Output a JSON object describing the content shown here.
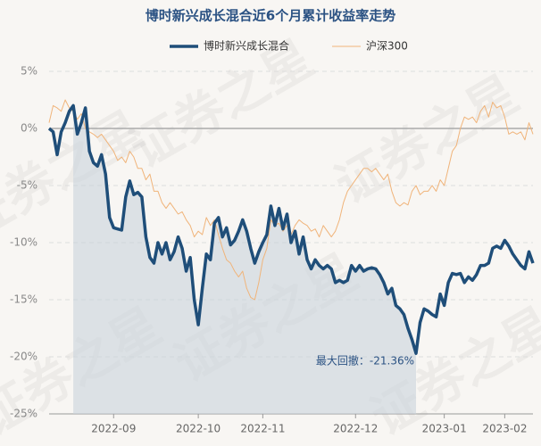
{
  "chart_data": {
    "type": "line",
    "title": "博时新兴成长混合近6个月累计收益率走势",
    "watermark": "证券之星",
    "annotation": "最大回撤：-21.36%",
    "categories": [
      null,
      null,
      null,
      null,
      null,
      null,
      null,
      null,
      null,
      null,
      null,
      null,
      null,
      null,
      null,
      null,
      "2022-09",
      null,
      null,
      null,
      null,
      null,
      null,
      null,
      null,
      null,
      null,
      null,
      null,
      null,
      null,
      null,
      null,
      null,
      null,
      null,
      null,
      "2022-10",
      null,
      null,
      null,
      null,
      null,
      null,
      null,
      null,
      null,
      null,
      null,
      null,
      null,
      null,
      null,
      "2022-11",
      null,
      null,
      null,
      null,
      null,
      null,
      null,
      null,
      null,
      null,
      null,
      null,
      null,
      null,
      null,
      null,
      null,
      null,
      null,
      null,
      null,
      null,
      "2022-12",
      null,
      null,
      null,
      null,
      null,
      null,
      null,
      null,
      null,
      null,
      null,
      null,
      null,
      null,
      null,
      null,
      null,
      null,
      null,
      null,
      null,
      "2023-01",
      null,
      null,
      null,
      null,
      null,
      null,
      null,
      null,
      null,
      null,
      null,
      null,
      null,
      null,
      "2023-02",
      null,
      null,
      null,
      null,
      null,
      null,
      null
    ],
    "series": [
      {
        "name": "博时新兴成长混合",
        "color": "#1f4e79",
        "values": [
          0,
          -0.3,
          -2.3,
          -0.3,
          0.5,
          1.5,
          2.0,
          -0.5,
          0.5,
          1.8,
          -2.0,
          -3.0,
          -3.3,
          -2.3,
          -4.0,
          -7.8,
          -8.7,
          -8.8,
          -8.9,
          -6.0,
          -4.6,
          -5.8,
          -5.6,
          -6.0,
          -9.5,
          -11.3,
          -11.8,
          -10.0,
          -11.0,
          -10.0,
          -11.5,
          -10.8,
          -9.5,
          -10.5,
          -12.5,
          -11.3,
          -15.0,
          -17.2,
          -14.0,
          -11.0,
          -11.5,
          -8.3,
          -7.8,
          -9.5,
          -8.7,
          -10.2,
          -9.8,
          -9.0,
          -8.0,
          -9.0,
          -10.5,
          -11.8,
          -10.8,
          -10.0,
          -9.3,
          -6.8,
          -8.5,
          -7.0,
          -8.8,
          -7.5,
          -10.0,
          -9.0,
          -11.0,
          -9.5,
          -11.5,
          -12.3,
          -11.5,
          -12.0,
          -12.3,
          -12.0,
          -12.3,
          -13.5,
          -13.3,
          -13.5,
          -13.3,
          -12.0,
          -12.5,
          -12.0,
          -12.5,
          -12.3,
          -12.2,
          -12.3,
          -12.8,
          -13.5,
          -14.5,
          -14.0,
          -15.5,
          -15.8,
          -16.3,
          -17.5,
          -18.5,
          -19.7,
          -17.0,
          -15.8,
          -16.0,
          -16.3,
          -16.5,
          -14.5,
          -15.5,
          -13.5,
          -12.7,
          -12.8,
          -12.7,
          -13.5,
          -13.0,
          -13.3,
          -12.8,
          -12.0,
          -12.0,
          -11.8,
          -10.5,
          -10.3,
          -10.5,
          -9.8,
          -10.3,
          -11.0,
          -11.5,
          -12.0,
          -12.3,
          -10.8,
          -11.8
        ]
      },
      {
        "name": "沪深300",
        "color": "#f0b47a",
        "values": [
          0.5,
          2.0,
          1.8,
          1.5,
          2.5,
          1.8,
          1.5,
          0.8,
          1.3,
          0,
          -0.3,
          -0.5,
          -0.8,
          -0.5,
          -1.0,
          -1.5,
          -2.0,
          -2.8,
          -2.5,
          -3.0,
          -2.0,
          -2.5,
          -3.5,
          -3.5,
          -4.5,
          -4.0,
          -5.5,
          -5.5,
          -6.5,
          -7.0,
          -6.5,
          -7.0,
          -7.5,
          -7.3,
          -8.0,
          -8.5,
          -9.5,
          -9.0,
          -9.3,
          -7.8,
          -8.5,
          -8.0,
          -9.3,
          -10.5,
          -11.5,
          -11.8,
          -12.5,
          -13.0,
          -12.5,
          -14.0,
          -14.8,
          -15.0,
          -13.5,
          -11.5,
          -10.5,
          -8.0,
          -8.5,
          -8.3,
          -9.0,
          -8.5,
          -9.3,
          -8.5,
          -8.0,
          -8.3,
          -8.5,
          -9.0,
          -8.8,
          -9.5,
          -8.5,
          -9.0,
          -9.5,
          -9.0,
          -8.0,
          -6.5,
          -5.5,
          -5.0,
          -4.5,
          -4.0,
          -3.5,
          -3.5,
          -3.8,
          -3.5,
          -4.0,
          -4.5,
          -4.0,
          -5.5,
          -6.5,
          -6.8,
          -6.5,
          -6.7,
          -5.5,
          -5.0,
          -5.8,
          -5.5,
          -5.5,
          -5.0,
          -5.5,
          -4.5,
          -5.0,
          -3.5,
          -2.0,
          -1.5,
          0,
          1.0,
          0.8,
          1.0,
          0.5,
          1.5,
          2.0,
          1.0,
          2.3,
          1.8,
          2.0,
          1.0,
          -0.5,
          -0.3,
          -0.5,
          -0.3,
          -1.0,
          0.5,
          -0.5
        ]
      }
    ],
    "ylim": [
      -25,
      5
    ],
    "yticks": [
      {
        "value": 5,
        "label": "5%"
      },
      {
        "value": 0,
        "label": "0%"
      },
      {
        "value": -5,
        "label": "-5%"
      },
      {
        "value": -10,
        "label": "-10%"
      },
      {
        "value": -15,
        "label": "-15%"
      },
      {
        "value": -20,
        "label": "-20%"
      },
      {
        "value": -25,
        "label": "-25%"
      }
    ],
    "grid": true
  }
}
